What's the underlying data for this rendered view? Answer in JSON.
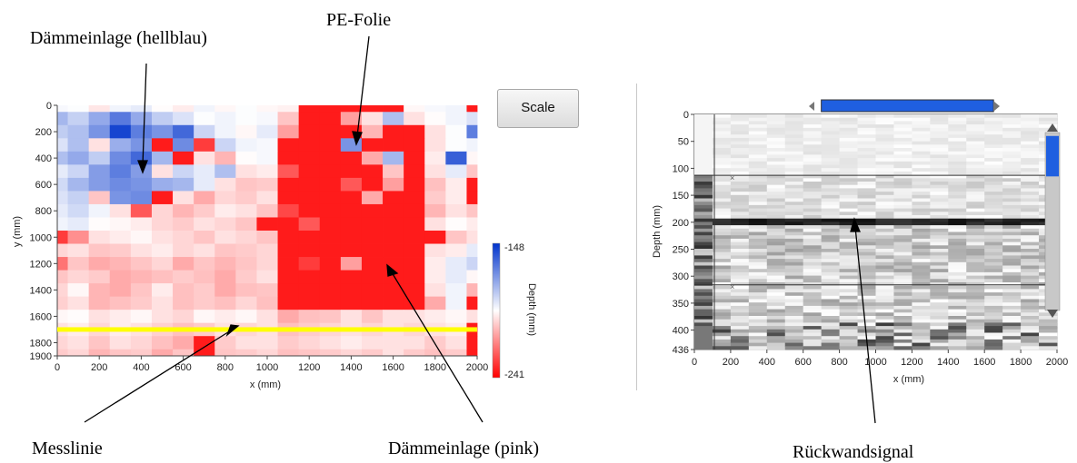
{
  "annotations": {
    "pe_folie": "PE-Folie",
    "daemm_hellblau": "Dämmeinlage (hellblau)",
    "messlinie": "Messlinie",
    "daemm_pink": "Dämmeinlage (pink)",
    "rueckwand": "Rückwandsignal"
  },
  "scale_button": {
    "label": "Scale"
  },
  "colors": {
    "high": "#ff0000",
    "mid": "#ffffff",
    "low": "#0033cc",
    "measure_line": "#ffff00",
    "slider": "#1f5fe0"
  },
  "chart_data": [
    {
      "type": "heatmap",
      "xlabel": "x (mm)",
      "ylabel": "y (mm)",
      "x_ticks": [
        "0",
        "200",
        "400",
        "600",
        "800",
        "1000",
        "1200",
        "1400",
        "1600",
        "1800",
        "2000"
      ],
      "y_ticks": [
        "0",
        "200",
        "400",
        "600",
        "800",
        "1000",
        "1200",
        "1400",
        "1600",
        "1800",
        "1900"
      ],
      "xlim": [
        0,
        2000
      ],
      "ylim": [
        0,
        1900
      ],
      "cell_size_mm": 100,
      "measure_line_y": 1700,
      "colorbar": {
        "label": "Depth (mm)",
        "max_label": "-148",
        "min_label": "-241",
        "max": -148,
        "min": -241
      },
      "legend_placement": "right",
      "depth_grid": [
        [
          -193,
          -194,
          -199,
          -192,
          -190,
          -195,
          -198,
          -192,
          -196,
          -194,
          -196,
          -197,
          -236,
          -236,
          -236,
          -236,
          -236,
          -196,
          -193,
          -192,
          -236
        ],
        [
          -178,
          -184,
          -175,
          -164,
          -175,
          -183,
          -188,
          -194,
          -192,
          -194,
          -193,
          -205,
          -236,
          -236,
          -212,
          -200,
          -180,
          -200,
          -195,
          -192,
          -188
        ],
        [
          -183,
          -180,
          -170,
          -152,
          -165,
          -170,
          -160,
          -185,
          -192,
          -196,
          -190,
          -212,
          -236,
          -236,
          -236,
          -208,
          -236,
          -236,
          -200,
          -194,
          -165
        ],
        [
          -188,
          -180,
          -200,
          -176,
          -170,
          -236,
          -168,
          -230,
          -185,
          -192,
          -193,
          -236,
          -236,
          -236,
          -170,
          -236,
          -236,
          -236,
          -200,
          -194,
          -192
        ],
        [
          -180,
          -175,
          -183,
          -168,
          -160,
          -178,
          -236,
          -200,
          -208,
          -195,
          -193,
          -236,
          -236,
          -236,
          -236,
          -210,
          -178,
          -236,
          -198,
          -158,
          -196
        ],
        [
          -190,
          -185,
          -172,
          -165,
          -172,
          -200,
          -185,
          -190,
          -180,
          -200,
          -198,
          -225,
          -236,
          -236,
          -236,
          -236,
          -205,
          -236,
          -200,
          -190,
          -205
        ],
        [
          -186,
          -178,
          -172,
          -168,
          -170,
          -176,
          -178,
          -190,
          -200,
          -205,
          -204,
          -236,
          -236,
          -236,
          -225,
          -236,
          -212,
          -236,
          -206,
          -198,
          -236
        ],
        [
          -188,
          -184,
          -205,
          -170,
          -168,
          -236,
          -200,
          -210,
          -202,
          -204,
          -200,
          -236,
          -236,
          -236,
          -236,
          -210,
          -236,
          -236,
          -204,
          -198,
          -236
        ],
        [
          -190,
          -186,
          -192,
          -200,
          -225,
          -202,
          -208,
          -204,
          -198,
          -200,
          -205,
          -228,
          -236,
          -236,
          -236,
          -236,
          -236,
          -236,
          -208,
          -200,
          -205
        ],
        [
          -192,
          -190,
          -195,
          -196,
          -198,
          -202,
          -204,
          -200,
          -202,
          -205,
          -236,
          -236,
          -225,
          -236,
          -236,
          -236,
          -236,
          -236,
          -200,
          -195,
          -198
        ],
        [
          -230,
          -215,
          -200,
          -198,
          -196,
          -200,
          -202,
          -205,
          -200,
          -202,
          -205,
          -236,
          -236,
          -236,
          -236,
          -236,
          -236,
          -236,
          -236,
          -205,
          -200
        ],
        [
          -202,
          -200,
          -205,
          -204,
          -200,
          -198,
          -202,
          -200,
          -205,
          -204,
          -202,
          -236,
          -236,
          -236,
          -236,
          -236,
          -236,
          -236,
          -200,
          -198,
          -190
        ],
        [
          -220,
          -205,
          -210,
          -208,
          -205,
          -202,
          -210,
          -205,
          -208,
          -205,
          -202,
          -236,
          -230,
          -236,
          -212,
          -236,
          -236,
          -236,
          -198,
          -190,
          -185
        ],
        [
          -205,
          -202,
          -204,
          -210,
          -208,
          -206,
          -204,
          -206,
          -210,
          -204,
          -200,
          -236,
          -236,
          -236,
          -236,
          -236,
          -236,
          -236,
          -198,
          -190,
          -196
        ],
        [
          -202,
          -196,
          -208,
          -210,
          -205,
          -198,
          -206,
          -204,
          -210,
          -206,
          -205,
          -236,
          -236,
          -236,
          -236,
          -236,
          -236,
          -236,
          -200,
          -192,
          -208
        ],
        [
          -203,
          -200,
          -208,
          -206,
          -204,
          -200,
          -206,
          -204,
          -206,
          -202,
          -206,
          -236,
          -236,
          -236,
          -236,
          -236,
          -236,
          -236,
          -210,
          -192,
          -236
        ],
        [
          -196,
          -195,
          -200,
          -198,
          -196,
          -200,
          -202,
          -196,
          -198,
          -196,
          -200,
          -210,
          -206,
          -205,
          -200,
          -205,
          -200,
          -200,
          -198,
          -196,
          -200
        ],
        [
          -200,
          -198,
          -202,
          -198,
          -200,
          -203,
          -206,
          -204,
          -200,
          -202,
          -200,
          -206,
          -204,
          -202,
          -200,
          -202,
          -200,
          -202,
          -200,
          -198,
          -236
        ],
        [
          -202,
          -200,
          -205,
          -200,
          -202,
          -206,
          -210,
          -236,
          -204,
          -200,
          -200,
          -204,
          -202,
          -200,
          -198,
          -200,
          -200,
          -200,
          -204,
          -200,
          -236
        ],
        [
          -204,
          -202,
          -208,
          -205,
          -204,
          -210,
          -205,
          -236,
          -205,
          -204,
          -202,
          -206,
          -205,
          -204,
          -202,
          -204,
          -200,
          -204,
          -206,
          -204,
          -236
        ]
      ]
    },
    {
      "type": "heatmap",
      "xlabel": "x (mm)",
      "ylabel": "Depth (mm)",
      "x_ticks": [
        "0",
        "200",
        "400",
        "600",
        "800",
        "1000",
        "1200",
        "1400",
        "1600",
        "1800",
        "2000"
      ],
      "y_ticks": [
        "0",
        "50",
        "100",
        "150",
        "200",
        "250",
        "300",
        "350",
        "400",
        "436"
      ],
      "xlim": [
        0,
        2000
      ],
      "ylim": [
        0,
        436
      ],
      "gate_lines_depth": [
        113,
        316
      ],
      "backwall_depth": 194,
      "horizontal_slider_range": [
        700,
        1650
      ],
      "vertical_scroll_range": [
        40,
        115
      ]
    }
  ]
}
